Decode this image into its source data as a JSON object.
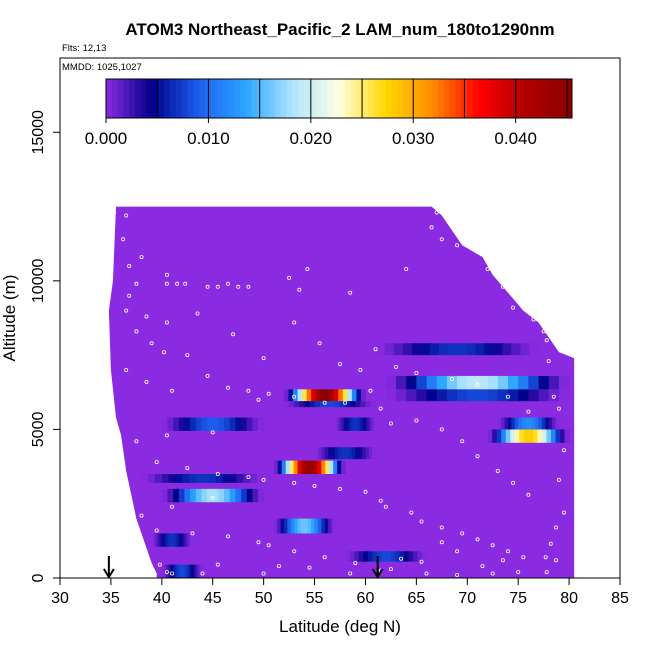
{
  "chart_data": {
    "type": "heatmap",
    "title": "ATOM3 Northeast_Pacific_2 LAM_num_180to1290nm",
    "flights_label": "Flts: 12,13",
    "dates_label": "MMDD: 1025,1027",
    "xlabel": "Latitude (deg N)",
    "ylabel": "Altitude (m)",
    "xlim": [
      30,
      85
    ],
    "ylim": [
      0,
      17500
    ],
    "xticks": [
      "30",
      "35",
      "40",
      "45",
      "50",
      "55",
      "60",
      "65",
      "70",
      "75",
      "80",
      "85"
    ],
    "yticks": [
      "0",
      "5000",
      "10000",
      "15000"
    ],
    "colorbar": {
      "range": [
        0,
        0.0455
      ],
      "ticks": [
        "0.000",
        "0.010",
        "0.020",
        "0.030",
        "0.040"
      ],
      "colors": [
        "#8a2be2",
        "#00008b",
        "#1e5ff0",
        "#2aa5ff",
        "#aee4ff",
        "#ffffe0",
        "#ffd700",
        "#ff8c00",
        "#ff0000",
        "#b00000",
        "#8b0000"
      ]
    },
    "background_value": 0.0,
    "domain": {
      "top_profile": [
        [
          35.5,
          12500
        ],
        [
          66.5,
          12500
        ],
        [
          67.5,
          12200
        ],
        [
          68.5,
          11700
        ],
        [
          69.5,
          11200
        ],
        [
          71.5,
          10800
        ],
        [
          72.5,
          10200
        ],
        [
          73.5,
          9800
        ],
        [
          74.5,
          9400
        ],
        [
          75.5,
          9000
        ],
        [
          77,
          8600
        ],
        [
          78,
          8100
        ],
        [
          79,
          7600
        ],
        [
          80.5,
          7400
        ]
      ],
      "left_profile": [
        [
          35.5,
          12500
        ],
        [
          35.2,
          10000
        ],
        [
          34.8,
          9000
        ],
        [
          35.0,
          7000
        ],
        [
          35.5,
          5400
        ],
        [
          36.0,
          4800
        ],
        [
          36.5,
          3600
        ],
        [
          37.0,
          2800
        ],
        [
          37.5,
          2000
        ],
        [
          38.0,
          1500
        ],
        [
          38.5,
          1000
        ],
        [
          39.0,
          500
        ],
        [
          39.5,
          150
        ]
      ],
      "right_edge_lat": 80.5
    },
    "features": [
      {
        "lat": [
          40.0,
          44.0
        ],
        "alt": [
          0,
          450
        ],
        "peak": 0.008
      },
      {
        "lat": [
          39.0,
          43.0
        ],
        "alt": [
          1050,
          1500
        ],
        "peak": 0.007
      },
      {
        "lat": [
          58.0,
          66.0
        ],
        "alt": [
          550,
          900
        ],
        "peak": 0.008
      },
      {
        "lat": [
          51.0,
          57.0
        ],
        "alt": [
          1500,
          2000
        ],
        "peak": 0.016
      },
      {
        "lat": [
          40.0,
          50.0
        ],
        "alt": [
          2550,
          3000
        ],
        "peak": 0.018
      },
      {
        "lat": [
          38.0,
          50.0
        ],
        "alt": [
          3200,
          3500
        ],
        "peak": 0.007
      },
      {
        "lat": [
          51.0,
          58.0
        ],
        "alt": [
          3500,
          3950
        ],
        "peak": 0.044
      },
      {
        "lat": [
          55.0,
          61.0
        ],
        "alt": [
          4000,
          4400
        ],
        "peak": 0.007
      },
      {
        "lat": [
          40.0,
          50.0
        ],
        "alt": [
          4950,
          5400
        ],
        "peak": 0.009
      },
      {
        "lat": [
          57.0,
          61.0
        ],
        "alt": [
          4950,
          5400
        ],
        "peak": 0.007
      },
      {
        "lat": [
          72.0,
          80.0
        ],
        "alt": [
          4550,
          5000
        ],
        "peak": 0.028
      },
      {
        "lat": [
          73.0,
          79.0
        ],
        "alt": [
          5000,
          5400
        ],
        "peak": 0.012
      },
      {
        "lat": [
          52.0,
          60.0
        ],
        "alt": [
          5950,
          6350
        ],
        "peak": 0.045
      },
      {
        "lat": [
          52.0,
          61.0
        ],
        "alt": [
          5750,
          5950
        ],
        "peak": 0.008
      },
      {
        "lat": [
          62.0,
          80.0
        ],
        "alt": [
          5950,
          6350
        ],
        "peak": 0.008
      },
      {
        "lat": [
          62.0,
          80.0
        ],
        "alt": [
          6350,
          6800
        ],
        "peak": 0.019
      },
      {
        "lat": [
          61.0,
          77.0
        ],
        "alt": [
          7500,
          7900
        ],
        "peak": 0.007
      }
    ],
    "samples": [
      [
        35.3,
        12300
      ],
      [
        36.5,
        12200
      ],
      [
        36.2,
        11400
      ],
      [
        36.8,
        10500
      ],
      [
        37.5,
        9900
      ],
      [
        40.5,
        9900
      ],
      [
        41.5,
        9900
      ],
      [
        42.3,
        9900
      ],
      [
        44.5,
        9800
      ],
      [
        45.5,
        9800
      ],
      [
        46.5,
        9900
      ],
      [
        47.5,
        9800
      ],
      [
        48.5,
        9800
      ],
      [
        52.5,
        10100
      ],
      [
        54.3,
        10400
      ],
      [
        53.5,
        9700
      ],
      [
        58.5,
        9600
      ],
      [
        64.0,
        10400
      ],
      [
        66.5,
        11800
      ],
      [
        67.5,
        11400
      ],
      [
        67.0,
        12300
      ],
      [
        69.0,
        11200
      ],
      [
        72.0,
        10400
      ],
      [
        73.5,
        9800
      ],
      [
        74.5,
        9100
      ],
      [
        76.5,
        8700
      ],
      [
        77.5,
        8300
      ],
      [
        77.8,
        8000
      ],
      [
        78.0,
        7300
      ],
      [
        78.5,
        6100
      ],
      [
        79.0,
        5700
      ],
      [
        79.5,
        4300
      ],
      [
        79.0,
        3300
      ],
      [
        79.5,
        2200
      ],
      [
        78.7,
        1700
      ],
      [
        78.2,
        1150
      ],
      [
        77.7,
        700
      ],
      [
        78.7,
        600
      ],
      [
        77.8,
        200
      ],
      [
        36.5,
        9000
      ],
      [
        38.5,
        8800
      ],
      [
        40.5,
        8600
      ],
      [
        39.0,
        7900
      ],
      [
        40.2,
        7600
      ],
      [
        42.5,
        7500
      ],
      [
        36.5,
        7000
      ],
      [
        38.5,
        6600
      ],
      [
        41.0,
        6300
      ],
      [
        44.5,
        6800
      ],
      [
        46.5,
        6400
      ],
      [
        48.5,
        6300
      ],
      [
        49.5,
        6000
      ],
      [
        50.5,
        6200
      ],
      [
        53.0,
        6100
      ],
      [
        56.0,
        5900
      ],
      [
        58.0,
        5900
      ],
      [
        60.5,
        6300
      ],
      [
        61.5,
        5700
      ],
      [
        62.5,
        5200
      ],
      [
        65.0,
        5300
      ],
      [
        67.5,
        5000
      ],
      [
        69.5,
        4600
      ],
      [
        71.0,
        4100
      ],
      [
        73.0,
        3600
      ],
      [
        74.5,
        3200
      ],
      [
        76.0,
        2800
      ],
      [
        45.0,
        4900
      ],
      [
        40.5,
        4800
      ],
      [
        37.5,
        4600
      ],
      [
        39.5,
        3900
      ],
      [
        42.5,
        3700
      ],
      [
        45.5,
        3500
      ],
      [
        48.5,
        3400
      ],
      [
        50.0,
        3300
      ],
      [
        53.0,
        3200
      ],
      [
        55.0,
        3100
      ],
      [
        57.5,
        3000
      ],
      [
        60.0,
        2900
      ],
      [
        61.5,
        2600
      ],
      [
        62.0,
        2400
      ],
      [
        64.5,
        2200
      ],
      [
        65.5,
        1900
      ],
      [
        67.5,
        1700
      ],
      [
        69.5,
        1500
      ],
      [
        71.0,
        1300
      ],
      [
        72.5,
        1100
      ],
      [
        74.0,
        900
      ],
      [
        75.5,
        700
      ],
      [
        45.0,
        2700
      ],
      [
        41.0,
        2400
      ],
      [
        38.0,
        2100
      ],
      [
        39.5,
        1600
      ],
      [
        43.0,
        1500
      ],
      [
        46.5,
        1400
      ],
      [
        49.5,
        1200
      ],
      [
        50.5,
        1100
      ],
      [
        53.0,
        900
      ],
      [
        56.0,
        700
      ],
      [
        59.0,
        500
      ],
      [
        62.5,
        300
      ],
      [
        66.0,
        150
      ],
      [
        69.0,
        100
      ],
      [
        72.5,
        150
      ],
      [
        75.0,
        200
      ],
      [
        39.8,
        450
      ],
      [
        40.5,
        200
      ],
      [
        41.0,
        150
      ],
      [
        44.0,
        150
      ],
      [
        45.5,
        450
      ],
      [
        50.0,
        150
      ],
      [
        51.5,
        400
      ],
      [
        54.5,
        350
      ],
      [
        58.5,
        150
      ],
      [
        61.5,
        250
      ],
      [
        63.5,
        650
      ],
      [
        65.5,
        550
      ],
      [
        67.5,
        1200
      ],
      [
        69.0,
        900
      ],
      [
        71.5,
        400
      ],
      [
        73.5,
        600
      ],
      [
        36.8,
        9500
      ],
      [
        38.0,
        10800
      ],
      [
        37.5,
        8300
      ],
      [
        40.5,
        10200
      ],
      [
        43.5,
        8900
      ],
      [
        47.0,
        8200
      ],
      [
        50.0,
        7400
      ],
      [
        53.0,
        8600
      ],
      [
        55.5,
        7900
      ],
      [
        57.5,
        7200
      ],
      [
        59.5,
        7000
      ],
      [
        61.0,
        7700
      ],
      [
        63.0,
        7100
      ],
      [
        65.0,
        6900
      ],
      [
        68.5,
        6700
      ],
      [
        71.0,
        6500
      ],
      [
        74.0,
        6100
      ],
      [
        76.0,
        5600
      ]
    ],
    "markers": [
      {
        "lat": 34.8,
        "type": "arrow-down"
      },
      {
        "lat": 61.2,
        "type": "arrow-down"
      }
    ]
  }
}
